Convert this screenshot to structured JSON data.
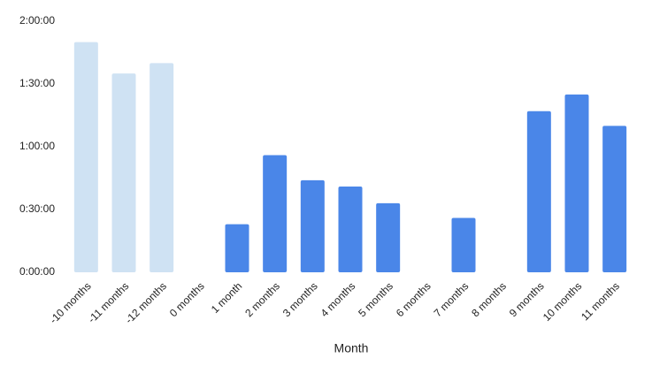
{
  "chart_data": {
    "type": "bar",
    "x_label": "Month",
    "categories": [
      "-10 months",
      "-11 months",
      "-12 months",
      "0 months",
      "1 month",
      "2 months",
      "3 months",
      "4 months",
      "5 months",
      "6 months",
      "7 months",
      "8 months",
      "9 months",
      "10 months",
      "11 months"
    ],
    "values": [
      110,
      95,
      100,
      null,
      23,
      56,
      44,
      41,
      33,
      null,
      26,
      null,
      77,
      85,
      70
    ],
    "colors": [
      "#cfe2f3",
      "#cfe2f3",
      "#cfe2f3",
      "#4a86e8",
      "#4a86e8",
      "#4a86e8",
      "#4a86e8",
      "#4a86e8",
      "#4a86e8",
      "#4a86e8",
      "#4a86e8",
      "#4a86e8",
      "#4a86e8",
      "#4a86e8",
      "#4a86e8"
    ],
    "ylim": [
      0,
      120
    ],
    "yticks": [
      {
        "value": 0,
        "label": "0:00:00"
      },
      {
        "value": 30,
        "label": "0:30:00"
      },
      {
        "value": 60,
        "label": "1:00:00"
      },
      {
        "value": 90,
        "label": "1:30:00"
      },
      {
        "value": 120,
        "label": "2:00:00"
      }
    ],
    "grid": false
  }
}
